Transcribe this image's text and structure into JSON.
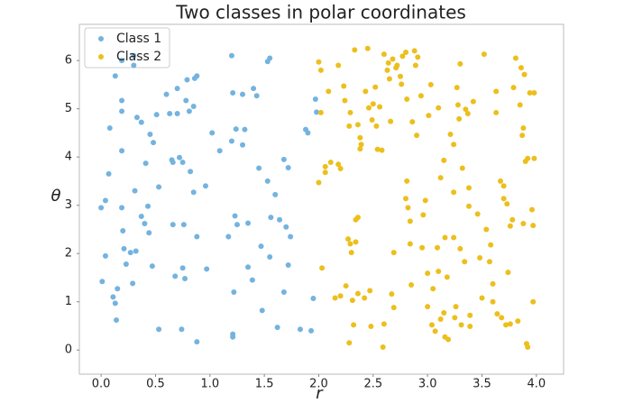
{
  "chart_data": {
    "type": "scatter",
    "title": "Two classes in polar coordinates",
    "x_label": "r",
    "y_label": "θ",
    "xlim": [
      -0.2,
      4.25
    ],
    "ylim": [
      -0.5,
      6.75
    ],
    "xticks": [
      {
        "value": 0,
        "label": "0.0"
      },
      0.5,
      {
        "value": 1,
        "label": "1.0"
      },
      1.5,
      {
        "value": 2,
        "label": "2.0"
      },
      2.5,
      {
        "value": 3,
        "label": "3.0"
      },
      3.5,
      {
        "value": 4,
        "label": "4.0"
      }
    ],
    "yticks": [
      0,
      1,
      2,
      3,
      4,
      5,
      6
    ],
    "legend": "upper left",
    "series": [
      {
        "name": "Class 1",
        "color": "#74b3df",
        "x": [
          0.0,
          0.04,
          0.07,
          0.08,
          0.04,
          0.01,
          0.11,
          0.13,
          0.15,
          0.14,
          0.13,
          0.19,
          0.19,
          0.19,
          0.19,
          0.19,
          0.2,
          0.21,
          0.23,
          0.27,
          0.3,
          0.3,
          0.33,
          0.37,
          0.31,
          0.32,
          0.29,
          0.37,
          0.4,
          0.41,
          0.43,
          0.44,
          0.45,
          0.48,
          0.47,
          0.51,
          0.53,
          0.53,
          0.6,
          0.63,
          0.65,
          0.66,
          0.66,
          0.68,
          0.7,
          0.7,
          0.72,
          0.75,
          0.76,
          0.75,
          0.77,
          0.74,
          0.78,
          0.79,
          0.82,
          0.85,
          0.81,
          0.85,
          0.86,
          0.88,
          0.88,
          0.88,
          0.97,
          1.02,
          0.96,
          1.09,
          1.17,
          1.2,
          1.21,
          1.24,
          1.21,
          1.21,
          1.22,
          1.23,
          1.2,
          1.25,
          1.3,
          1.3,
          1.32,
          1.35,
          1.35,
          1.39,
          1.43,
          1.4,
          1.45,
          1.47,
          1.48,
          1.53,
          1.53,
          1.55,
          1.55,
          1.56,
          1.6,
          1.64,
          1.68,
          1.7,
          1.72,
          1.72,
          1.74,
          1.68,
          1.62,
          1.83,
          1.88,
          1.9,
          1.93,
          1.95,
          1.97,
          1.98
        ],
        "values": [
          2.95,
          3.1,
          3.65,
          4.6,
          1.95,
          1.42,
          1.1,
          0.97,
          1.27,
          0.62,
          5.68,
          6.0,
          5.17,
          4.95,
          4.13,
          2.95,
          2.47,
          2.1,
          1.78,
          2.02,
          5.9,
          6.1,
          4.82,
          4.72,
          3.3,
          2.05,
          1.38,
          2.77,
          2.62,
          3.87,
          2.98,
          2.43,
          4.47,
          4.3,
          1.74,
          4.88,
          3.38,
          0.43,
          5.3,
          4.9,
          3.94,
          3.89,
          2.6,
          1.53,
          5.42,
          4.9,
          3.99,
          3.89,
          2.6,
          1.7,
          1.48,
          0.43,
          5.17,
          5.6,
          3.7,
          3.27,
          4.95,
          5.05,
          5.63,
          5.68,
          2.35,
          0.17,
          1.68,
          4.5,
          3.4,
          4.13,
          2.35,
          6.1,
          5.33,
          4.58,
          0.27,
          0.33,
          1.2,
          2.78,
          4.33,
          2.6,
          4.25,
          5.3,
          4.57,
          2.63,
          1.72,
          1.45,
          5.27,
          5.42,
          3.77,
          2.15,
          0.82,
          3.5,
          5.98,
          6.05,
          1.93,
          2.75,
          3.22,
          2.7,
          3.95,
          2.55,
          3.78,
          1.76,
          2.35,
          1.2,
          0.47,
          0.43,
          4.57,
          4.5,
          0.4,
          1.07,
          5.2,
          4.93
        ]
      },
      {
        "name": "Class 2",
        "color": "#ecbf1c",
        "x": [
          2.0,
          2.02,
          2.0,
          2.02,
          2.03,
          2.06,
          2.06,
          2.09,
          2.11,
          2.15,
          2.18,
          2.18,
          2.2,
          2.2,
          2.23,
          2.24,
          2.28,
          2.29,
          2.25,
          2.27,
          2.29,
          2.28,
          2.31,
          2.33,
          2.3,
          2.34,
          2.34,
          2.36,
          2.36,
          2.38,
          2.39,
          2.38,
          2.36,
          2.32,
          2.42,
          2.46,
          2.43,
          2.45,
          2.5,
          2.49,
          2.47,
          2.48,
          2.52,
          2.54,
          2.53,
          2.56,
          2.58,
          2.6,
          2.63,
          2.64,
          2.59,
          2.6,
          2.65,
          2.66,
          2.67,
          2.68,
          2.71,
          2.69,
          2.69,
          2.72,
          2.75,
          2.76,
          2.77,
          2.8,
          2.81,
          2.81,
          2.8,
          2.82,
          2.84,
          2.84,
          2.85,
          2.86,
          2.88,
          2.89,
          2.9,
          2.91,
          2.94,
          2.95,
          2.96,
          2.98,
          3.0,
          3.0,
          3.01,
          3.03,
          3.04,
          3.05,
          3.07,
          3.09,
          3.1,
          3.1,
          3.12,
          3.12,
          3.15,
          3.15,
          3.16,
          3.16,
          3.18,
          3.19,
          3.21,
          3.24,
          3.24,
          3.24,
          3.26,
          3.25,
          3.27,
          3.28,
          3.29,
          3.3,
          3.3,
          3.31,
          3.32,
          3.34,
          3.35,
          3.37,
          3.38,
          3.38,
          3.39,
          3.39,
          3.42,
          3.46,
          3.48,
          3.5,
          3.52,
          3.54,
          3.58,
          3.57,
          3.6,
          3.6,
          3.63,
          3.63,
          3.64,
          3.67,
          3.68,
          3.7,
          3.7,
          3.72,
          3.73,
          3.74,
          3.76,
          3.76,
          3.79,
          3.78,
          3.81,
          3.83,
          3.85,
          3.86,
          3.87,
          3.88,
          3.88,
          3.89,
          3.9,
          3.91,
          3.92,
          3.92,
          3.94,
          3.96,
          3.97,
          3.97,
          3.98,
          3.98
        ],
        "values": [
          5.97,
          5.8,
          3.47,
          4.92,
          1.7,
          3.68,
          3.8,
          5.36,
          3.89,
          1.08,
          5.9,
          3.85,
          3.76,
          1.12,
          5.47,
          5.17,
          4.64,
          4.92,
          1.33,
          2.3,
          2.2,
          0.15,
          1.03,
          6.22,
          2.02,
          2.24,
          2.7,
          2.75,
          4.67,
          4.4,
          4.26,
          4.17,
          1.17,
          0.52,
          1.08,
          5.02,
          5.36,
          6.25,
          5.1,
          4.77,
          1.23,
          0.49,
          5.45,
          4.16,
          4.64,
          5.04,
          4.14,
          6.13,
          5.8,
          5.95,
          0.06,
          0.54,
          5.62,
          4.74,
          1.16,
          6.03,
          5.85,
          0.88,
          2.02,
          5.9,
          5.67,
          5.51,
          6.09,
          6.17,
          5.2,
          3.5,
          3.14,
          2.95,
          2.2,
          2.67,
          1.35,
          4.73,
          6.2,
          5.9,
          4.45,
          6.07,
          5.27,
          2.12,
          2.8,
          3.1,
          1.59,
          0.9,
          4.86,
          5.5,
          0.52,
          1.27,
          0.39,
          2.12,
          5.02,
          1.63,
          3.57,
          0.64,
          0.77,
          3.93,
          2.33,
          0.27,
          1.51,
          0.22,
          4.47,
          4.26,
          3.27,
          2.33,
          0.9,
          0.67,
          5.44,
          5.08,
          4.79,
          5.93,
          2.1,
          0.52,
          3.77,
          1.83,
          4.99,
          4.9,
          3.36,
          2.98,
          0.49,
          0.72,
          5.15,
          2.82,
          1.91,
          1.08,
          6.13,
          2.5,
          2.18,
          1.83,
          1.37,
          1.0,
          5.36,
          4.92,
          0.75,
          3.5,
          0.67,
          3.4,
          3.14,
          0.52,
          3.03,
          1.61,
          0.54,
          2.57,
          5.44,
          2.7,
          6.05,
          0.6,
          5.08,
          5.85,
          4.45,
          4.6,
          2.62,
          5.71,
          3.91,
          0.13,
          3.97,
          0.06,
          5.33,
          2.91,
          1.0,
          2.58,
          5.33,
          3.97
        ]
      }
    ]
  }
}
